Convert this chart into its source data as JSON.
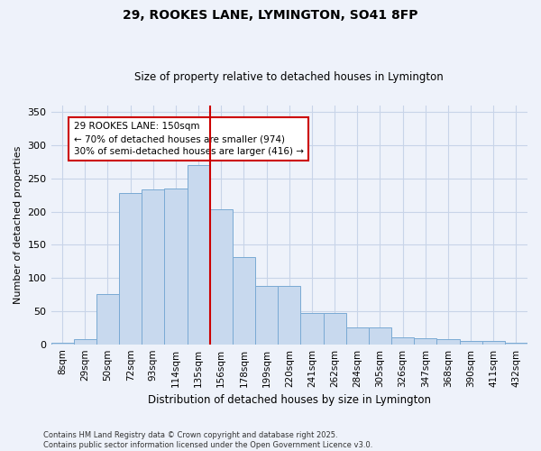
{
  "title": "29, ROOKES LANE, LYMINGTON, SO41 8FP",
  "subtitle": "Size of property relative to detached houses in Lymington",
  "xlabel": "Distribution of detached houses by size in Lymington",
  "ylabel": "Number of detached properties",
  "bar_color": "#c8d9ee",
  "bar_edge_color": "#7aaad4",
  "vline_color": "#cc0000",
  "vline_category_index": 7,
  "background_color": "#eef2fa",
  "categories": [
    "8sqm",
    "29sqm",
    "50sqm",
    "72sqm",
    "93sqm",
    "114sqm",
    "135sqm",
    "156sqm",
    "178sqm",
    "199sqm",
    "220sqm",
    "241sqm",
    "262sqm",
    "284sqm",
    "305sqm",
    "326sqm",
    "347sqm",
    "368sqm",
    "390sqm",
    "411sqm",
    "432sqm"
  ],
  "values": [
    2,
    8,
    76,
    228,
    233,
    235,
    270,
    203,
    131,
    88,
    88,
    47,
    47,
    25,
    25,
    11,
    9,
    8,
    5,
    5,
    2
  ],
  "ylim": [
    0,
    360
  ],
  "annotation_text": "29 ROOKES LANE: 150sqm\n← 70% of detached houses are smaller (974)\n30% of semi-detached houses are larger (416) →",
  "annotation_box_color": "#ffffff",
  "annotation_box_edge_color": "#cc0000",
  "footnote1": "Contains HM Land Registry data © Crown copyright and database right 2025.",
  "footnote2": "Contains public sector information licensed under the Open Government Licence v3.0.",
  "grid_color": "#c8d4e8",
  "title_fontsize": 10,
  "subtitle_fontsize": 8.5
}
